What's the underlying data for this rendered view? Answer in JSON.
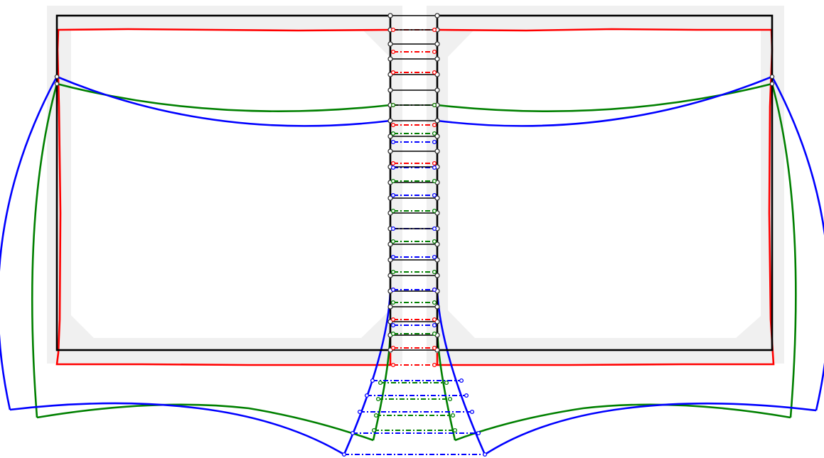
{
  "diagram": {
    "type": "structural-deformation-plot",
    "background_color": "#ffffff",
    "panel_fill_color": "#f0f0f0",
    "series": [
      {
        "key": "undeformed",
        "color": "#000000",
        "style": "solid"
      },
      {
        "key": "deformed-red",
        "color": "#ff0000",
        "style": "solid",
        "link_style": "dash-dot"
      },
      {
        "key": "deformed-green",
        "color": "#008000",
        "style": "solid",
        "link_style": "dash-dot"
      },
      {
        "key": "deformed-blue",
        "color": "#0000ff",
        "style": "solid",
        "link_style": "dash-dot"
      }
    ],
    "node_marker": {
      "color": "#000000",
      "shape": "circle"
    }
  }
}
